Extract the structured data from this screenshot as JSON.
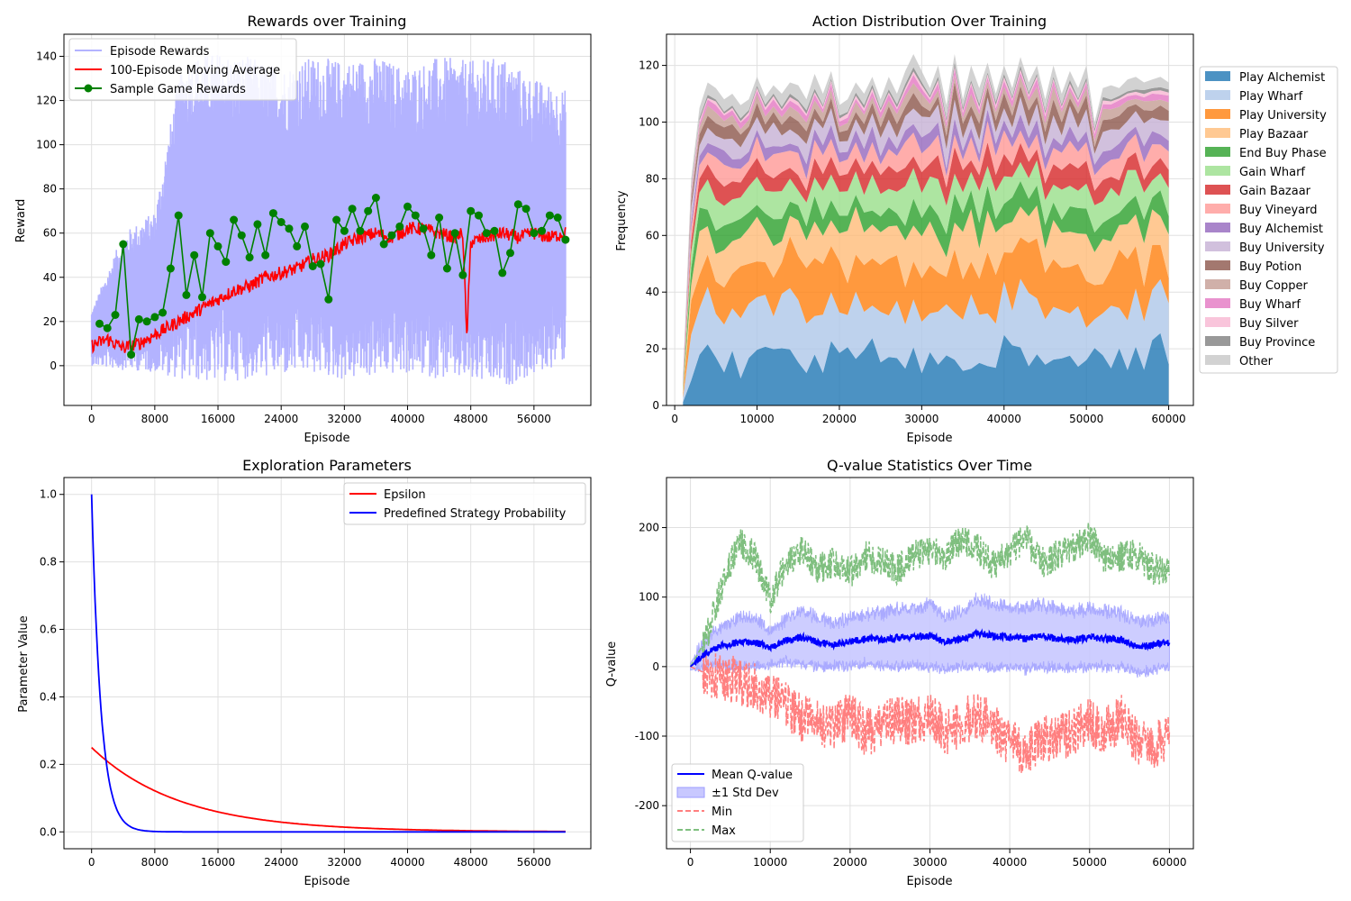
{
  "colors": {
    "episode_rewards": "#b3b3ff",
    "moving_average": "#ff0000",
    "sample_rewards": "#008000",
    "epsilon": "#ff0000",
    "predef": "#0000ff",
    "mean_q": "#0000ff",
    "std_band": "#c8c8ff",
    "min_q": "#ff7f7f",
    "max_q": "#7fbf7f"
  },
  "chart_data": [
    {
      "id": "rewards",
      "type": "line",
      "title": "Rewards over Training",
      "xlabel": "Episode",
      "ylabel": "Reward",
      "xlim": [
        -3500,
        63200
      ],
      "ylim": [
        -18,
        150
      ],
      "xticks": [
        0,
        8000,
        16000,
        24000,
        32000,
        40000,
        48000,
        56000
      ],
      "yticks": [
        0,
        20,
        40,
        60,
        80,
        100,
        120,
        140
      ],
      "legend_position": "top-left",
      "legend": [
        "Episode Rewards",
        "100-Episode Moving Average",
        "Sample Game Rewards"
      ],
      "episode_rewards_envelope": {
        "x": [
          0,
          4000,
          8000,
          9000,
          10000,
          11000,
          12000,
          16000,
          20000,
          24000,
          28000,
          32000,
          36000,
          40000,
          44000,
          48000,
          52000,
          56000,
          60000
        ],
        "upper": [
          25,
          60,
          70,
          90,
          110,
          130,
          140,
          142,
          140,
          135,
          140,
          138,
          140,
          135,
          140,
          138,
          140,
          130,
          125
        ],
        "lower": [
          0,
          -2,
          -3,
          -4,
          -5,
          -6,
          -7,
          -8,
          -6,
          -5,
          -4,
          -7,
          -5,
          -4,
          -6,
          -8,
          -10,
          -5,
          2
        ]
      },
      "moving_average": {
        "x": [
          0,
          2000,
          4000,
          6000,
          8000,
          10000,
          12000,
          14000,
          16000,
          18000,
          20000,
          22000,
          24000,
          26000,
          28000,
          30000,
          32000,
          34000,
          36000,
          38000,
          40000,
          42000,
          44000,
          46000,
          47000,
          47500,
          48000,
          50000,
          52000,
          54000,
          56000,
          58000,
          60000
        ],
        "y": [
          9,
          12,
          8,
          10,
          14,
          18,
          22,
          26,
          30,
          34,
          36,
          40,
          42,
          44,
          48,
          50,
          55,
          58,
          60,
          58,
          62,
          62,
          60,
          58,
          60,
          12,
          56,
          58,
          60,
          58,
          60,
          58,
          60
        ]
      },
      "sample_rewards": {
        "x": [
          1000,
          2000,
          3000,
          4000,
          5000,
          6000,
          7000,
          8000,
          9000,
          10000,
          11000,
          12000,
          13000,
          14000,
          15000,
          16000,
          17000,
          18000,
          19000,
          20000,
          21000,
          22000,
          23000,
          24000,
          25000,
          26000,
          27000,
          28000,
          29000,
          30000,
          31000,
          32000,
          33000,
          34000,
          35000,
          36000,
          37000,
          38000,
          39000,
          40000,
          41000,
          42000,
          43000,
          44000,
          45000,
          46000,
          47000,
          48000,
          49000,
          50000,
          51000,
          52000,
          53000,
          54000,
          55000,
          56000,
          57000,
          58000,
          59000,
          60000
        ],
        "y": [
          19,
          17,
          23,
          55,
          5,
          21,
          20,
          22,
          24,
          44,
          68,
          32,
          50,
          31,
          60,
          54,
          47,
          66,
          59,
          49,
          64,
          50,
          69,
          65,
          62,
          54,
          63,
          45,
          46,
          30,
          66,
          61,
          71,
          61,
          70,
          76,
          55,
          59,
          63,
          72,
          68,
          62,
          50,
          67,
          44,
          60,
          41,
          70,
          68,
          60,
          61,
          42,
          51,
          73,
          71,
          60,
          61,
          68,
          67,
          57
        ]
      }
    },
    {
      "id": "actions",
      "type": "area",
      "title": "Action Distribution Over Training",
      "xlabel": "Episode",
      "ylabel": "Frequency",
      "xlim": [
        -1000,
        63000
      ],
      "ylim": [
        0,
        131
      ],
      "xticks": [
        0,
        10000,
        20000,
        30000,
        40000,
        50000,
        60000
      ],
      "yticks": [
        0,
        20,
        40,
        60,
        80,
        100,
        120
      ],
      "legend_position": "outside-right",
      "x": [
        1000,
        2000,
        3000,
        4000,
        5000,
        6000,
        7000,
        8000,
        9000,
        10000,
        11000,
        12000,
        13000,
        14000,
        15000,
        16000,
        17000,
        18000,
        19000,
        20000,
        21000,
        22000,
        23000,
        24000,
        25000,
        26000,
        27000,
        28000,
        29000,
        30000,
        31000,
        32000,
        33000,
        34000,
        35000,
        36000,
        37000,
        38000,
        39000,
        40000,
        41000,
        42000,
        43000,
        44000,
        45000,
        46000,
        47000,
        48000,
        49000,
        50000,
        51000,
        52000,
        53000,
        54000,
        55000,
        56000,
        57000,
        58000,
        59000,
        60000
      ],
      "cumulative_top_shape": [
        10,
        80,
        105,
        114,
        112,
        108,
        110,
        106,
        108,
        116,
        109,
        113,
        110,
        114,
        113,
        108,
        117,
        110,
        118,
        106,
        108,
        114,
        110,
        116,
        108,
        116,
        110,
        118,
        124,
        118,
        112,
        120,
        106,
        124,
        108,
        120,
        112,
        121,
        110,
        120,
        112,
        123,
        114,
        120,
        108,
        120,
        110,
        118,
        112,
        120,
        100,
        112,
        113,
        112,
        115,
        116,
        114,
        115,
        116,
        114
      ],
      "series": [
        {
          "name": "Play Alchemist",
          "color": "#1f77b4",
          "avg": 18
        },
        {
          "name": "Play Wharf",
          "color": "#aec7e8",
          "avg": 18
        },
        {
          "name": "Play University",
          "color": "#ff7f0e",
          "avg": 16
        },
        {
          "name": "Play Bazaar",
          "color": "#ffbb78",
          "avg": 13
        },
        {
          "name": "End Buy Phase",
          "color": "#2ca02c",
          "avg": 7
        },
        {
          "name": "Gain Wharf",
          "color": "#98df8a",
          "avg": 9
        },
        {
          "name": "Gain Bazaar",
          "color": "#d62728",
          "avg": 6
        },
        {
          "name": "Buy Vineyard",
          "color": "#ff9896",
          "avg": 6
        },
        {
          "name": "Buy Alchemist",
          "color": "#9467bd",
          "avg": 4
        },
        {
          "name": "Buy University",
          "color": "#c5b0d5",
          "avg": 6
        },
        {
          "name": "Buy Potion",
          "color": "#8c564b",
          "avg": 4
        },
        {
          "name": "Buy Copper",
          "color": "#c49c94",
          "avg": 3
        },
        {
          "name": "Buy Wharf",
          "color": "#e377c2",
          "avg": 2
        },
        {
          "name": "Buy Silver",
          "color": "#f7b6d2",
          "avg": 1
        },
        {
          "name": "Buy Province",
          "color": "#7f7f7f",
          "avg": 1
        },
        {
          "name": "Other",
          "color": "#c7c7c7",
          "avg": 4
        }
      ]
    },
    {
      "id": "exploration",
      "type": "line",
      "title": "Exploration Parameters",
      "xlabel": "Episode",
      "ylabel": "Parameter Value",
      "xlim": [
        -3500,
        63200
      ],
      "ylim": [
        -0.05,
        1.05
      ],
      "xticks": [
        0,
        8000,
        16000,
        24000,
        32000,
        40000,
        48000,
        56000
      ],
      "yticks": [
        0.0,
        0.2,
        0.4,
        0.6,
        0.8,
        1.0
      ],
      "legend_position": "top-right",
      "series": [
        {
          "name": "Epsilon",
          "start": 0.25,
          "decay_per_episode": 9e-05
        },
        {
          "name": "Predefined Strategy Probability",
          "start": 1.0,
          "decay_per_episode": 0.00085
        }
      ]
    },
    {
      "id": "qvalues",
      "type": "line",
      "title": "Q-value Statistics Over Time",
      "xlabel": "Episode",
      "ylabel": "Q-value",
      "xlim": [
        -3000,
        63000
      ],
      "ylim": [
        -262,
        272
      ],
      "xticks": [
        0,
        10000,
        20000,
        30000,
        40000,
        50000,
        60000
      ],
      "yticks": [
        -200,
        -100,
        0,
        100,
        200
      ],
      "legend_position": "bottom-left",
      "legend": [
        "Mean Q-value",
        "±1 Std Dev",
        "Min",
        "Max"
      ],
      "x": [
        0,
        2000,
        4000,
        6000,
        8000,
        10000,
        12000,
        14000,
        16000,
        18000,
        20000,
        22000,
        24000,
        26000,
        28000,
        30000,
        32000,
        34000,
        36000,
        38000,
        40000,
        42000,
        44000,
        46000,
        48000,
        50000,
        52000,
        54000,
        56000,
        58000,
        60000
      ],
      "mean": [
        0,
        20,
        30,
        35,
        35,
        28,
        38,
        42,
        35,
        32,
        36,
        40,
        38,
        42,
        42,
        45,
        36,
        40,
        48,
        44,
        42,
        40,
        45,
        40,
        38,
        42,
        40,
        38,
        28,
        32,
        34
      ],
      "std": [
        5,
        20,
        28,
        35,
        35,
        25,
        30,
        40,
        35,
        30,
        35,
        35,
        38,
        42,
        40,
        45,
        38,
        40,
        48,
        45,
        42,
        44,
        45,
        42,
        40,
        42,
        40,
        38,
        38,
        36,
        35
      ],
      "min": [
        0,
        -10,
        -15,
        -20,
        -30,
        -40,
        -55,
        -75,
        -80,
        -85,
        -70,
        -95,
        -85,
        -75,
        -80,
        -70,
        -95,
        -80,
        -70,
        -85,
        -110,
        -125,
        -105,
        -100,
        -95,
        -80,
        -90,
        -75,
        -110,
        -115,
        -100
      ],
      "max": [
        0,
        40,
        120,
        180,
        160,
        95,
        150,
        170,
        140,
        150,
        135,
        160,
        150,
        140,
        160,
        165,
        160,
        185,
        170,
        145,
        165,
        185,
        150,
        160,
        170,
        190,
        150,
        160,
        160,
        140,
        140
      ]
    }
  ]
}
